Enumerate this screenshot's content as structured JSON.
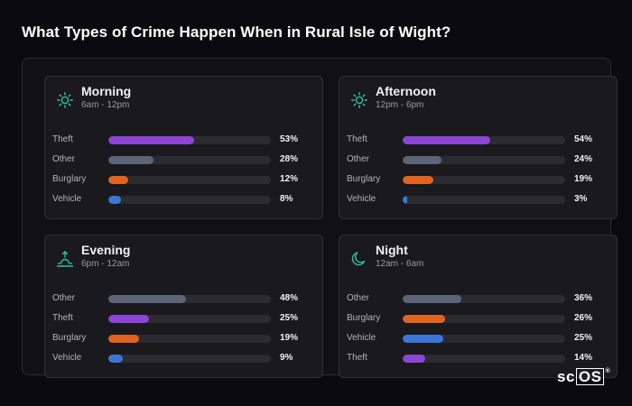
{
  "title": "What Types of Crime Happen When in Rural Isle of Wight?",
  "brand": {
    "prefix": "sc",
    "boxed": "OS",
    "mark": "®"
  },
  "colors": {
    "Theft": "#8d45d4",
    "Other": "#5d6478",
    "Burglary": "#e0631f",
    "Vehicle": "#3b76d6",
    "icon": "#2fc3a0"
  },
  "chart_data": [
    {
      "type": "bar",
      "title": "Morning",
      "subtitle": "6am - 12pm",
      "icon": "sun-icon",
      "categories": [
        "Theft",
        "Other",
        "Burglary",
        "Vehicle"
      ],
      "values": [
        53,
        28,
        12,
        8
      ],
      "value_labels": [
        "53%",
        "28%",
        "12%",
        "8%"
      ]
    },
    {
      "type": "bar",
      "title": "Afternoon",
      "subtitle": "12pm - 6pm",
      "icon": "sun-icon",
      "categories": [
        "Theft",
        "Other",
        "Burglary",
        "Vehicle"
      ],
      "values": [
        54,
        24,
        19,
        3
      ],
      "value_labels": [
        "54%",
        "24%",
        "19%",
        "3%"
      ]
    },
    {
      "type": "bar",
      "title": "Evening",
      "subtitle": "6pm - 12am",
      "icon": "sunset-icon",
      "categories": [
        "Other",
        "Theft",
        "Burglary",
        "Vehicle"
      ],
      "values": [
        48,
        25,
        19,
        9
      ],
      "value_labels": [
        "48%",
        "25%",
        "19%",
        "9%"
      ]
    },
    {
      "type": "bar",
      "title": "Night",
      "subtitle": "12am - 6am",
      "icon": "moon-icon",
      "categories": [
        "Other",
        "Burglary",
        "Vehicle",
        "Theft"
      ],
      "values": [
        36,
        26,
        25,
        14
      ],
      "value_labels": [
        "36%",
        "26%",
        "25%",
        "14%"
      ]
    }
  ]
}
